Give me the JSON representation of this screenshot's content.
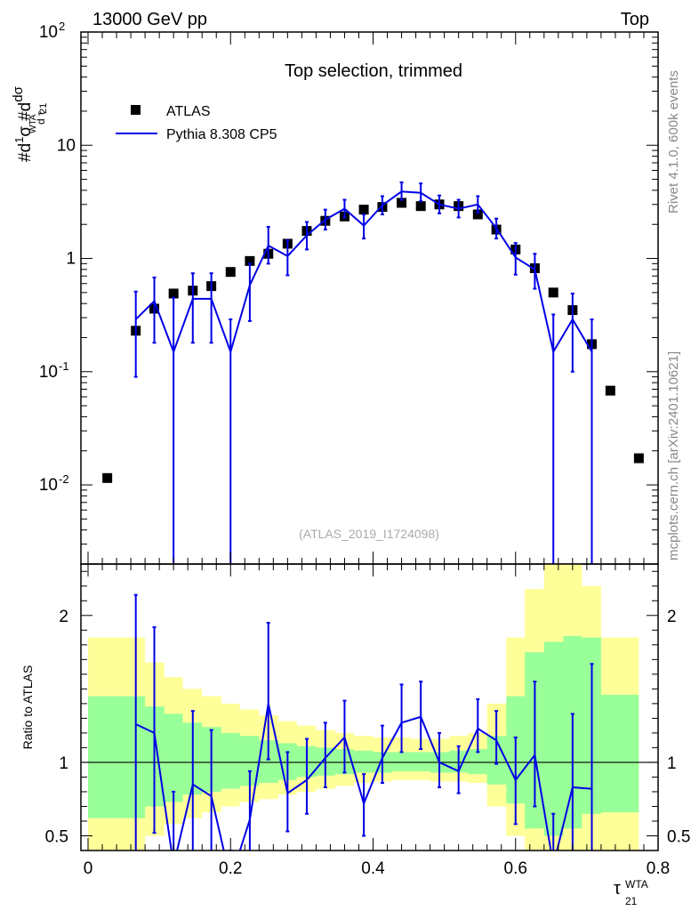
{
  "header": {
    "left": "13000 GeV pp",
    "right": "Top"
  },
  "side_texts": {
    "rivet": "Rivet 4.1.0,  600k events",
    "mcplots": "mcplots.cern.ch [arXiv:2401.10621]"
  },
  "watermark": "(ATLAS_2019_I1724098)",
  "chart_data": [
    {
      "type": "scatter",
      "title": "Top selection, trimmed",
      "xlabel": "τ21 WTA",
      "ylabel": "1/σ dσ/dτ21 WTA",
      "yscale": "log",
      "ylim": [
        0.002,
        100
      ],
      "xlim": [
        -0.01,
        0.8
      ],
      "xticks": [
        0,
        0.2,
        0.4,
        0.6,
        0.8
      ],
      "xtick_labels": [
        "0",
        "0.2",
        "0.4",
        "0.6",
        "0.8"
      ],
      "ytick_labels": [
        "10^-2",
        "10^-1",
        "1",
        "10",
        "10^2"
      ],
      "legend": [
        "ATLAS",
        "Pythia 8.308 CP5"
      ],
      "series": [
        {
          "name": "ATLAS",
          "x": [
            0.027,
            0.067,
            0.093,
            0.12,
            0.147,
            0.173,
            0.2,
            0.227,
            0.253,
            0.28,
            0.307,
            0.333,
            0.36,
            0.387,
            0.413,
            0.44,
            0.467,
            0.493,
            0.52,
            0.547,
            0.573,
            0.6,
            0.627,
            0.653,
            0.68,
            0.707,
            0.733,
            0.773
          ],
          "y": [
            0.0115,
            0.23,
            0.36,
            0.49,
            0.52,
            0.57,
            0.76,
            0.95,
            1.1,
            1.35,
            1.75,
            2.15,
            2.35,
            2.7,
            2.85,
            3.1,
            2.9,
            3.0,
            2.9,
            2.45,
            1.8,
            1.2,
            0.82,
            0.5,
            0.35,
            0.175,
            0.068,
            0.0172
          ]
        },
        {
          "name": "Pythia 8.308 CP5",
          "x": [
            0.067,
            0.093,
            0.12,
            0.147,
            0.173,
            0.2,
            0.227,
            0.253,
            0.28,
            0.307,
            0.333,
            0.36,
            0.387,
            0.413,
            0.44,
            0.467,
            0.493,
            0.52,
            0.547,
            0.573,
            0.6,
            0.627,
            0.653,
            0.68,
            0.707
          ],
          "y": [
            0.29,
            0.42,
            0.15,
            0.44,
            0.44,
            0.15,
            0.58,
            1.3,
            1.05,
            1.6,
            2.2,
            2.75,
            1.95,
            2.95,
            3.9,
            3.8,
            3.0,
            2.75,
            3.0,
            1.85,
            1.02,
            0.8,
            0.15,
            0.29,
            0.15
          ],
          "err": [
            [
              0.2,
              0.22
            ],
            [
              0.24,
              0.26
            ],
            [
              0.15,
              0.3
            ],
            [
              0.26,
              0.3
            ],
            [
              0.26,
              0.3
            ],
            [
              0.15,
              0.14
            ],
            [
              0.3,
              0.32
            ],
            [
              0.4,
              0.6
            ],
            [
              0.34,
              0.4
            ],
            [
              0.4,
              0.5
            ],
            [
              0.4,
              0.5
            ],
            [
              0.45,
              0.55
            ],
            [
              0.45,
              0.5
            ],
            [
              0.5,
              0.6
            ],
            [
              0.6,
              0.8
            ],
            [
              0.6,
              0.8
            ],
            [
              0.5,
              0.6
            ],
            [
              0.45,
              0.55
            ],
            [
              0.45,
              0.55
            ],
            [
              0.35,
              0.4
            ],
            [
              0.3,
              0.35
            ],
            [
              0.26,
              0.3
            ],
            [
              0.15,
              0.17
            ],
            [
              0.19,
              0.2
            ],
            [
              0.15,
              0.14
            ]
          ]
        }
      ]
    },
    {
      "type": "line",
      "ylabel": "Ratio to ATLAS",
      "ylim": [
        0.4,
        2.35
      ],
      "ytick_labels": [
        "0.5",
        "1",
        "2"
      ],
      "reference": 1.0,
      "bands": {
        "x_edges": [
          0.0,
          0.053,
          0.08,
          0.107,
          0.133,
          0.16,
          0.187,
          0.213,
          0.24,
          0.267,
          0.293,
          0.32,
          0.347,
          0.373,
          0.4,
          0.427,
          0.453,
          0.48,
          0.507,
          0.533,
          0.56,
          0.587,
          0.613,
          0.64,
          0.667,
          0.693,
          0.72,
          0.773
        ],
        "green_lo": [
          0.62,
          0.62,
          0.7,
          0.73,
          0.78,
          0.8,
          0.82,
          0.84,
          0.86,
          0.88,
          0.9,
          0.91,
          0.92,
          0.93,
          0.93,
          0.94,
          0.94,
          0.93,
          0.93,
          0.92,
          0.85,
          0.72,
          0.55,
          0.5,
          0.55,
          0.65,
          0.66
        ],
        "green_hi": [
          1.45,
          1.45,
          1.38,
          1.33,
          1.27,
          1.24,
          1.2,
          1.18,
          1.15,
          1.13,
          1.11,
          1.1,
          1.09,
          1.08,
          1.07,
          1.07,
          1.07,
          1.07,
          1.08,
          1.09,
          1.18,
          1.45,
          1.75,
          1.82,
          1.86,
          1.85,
          1.46
        ],
        "yellow_lo": [
          0.35,
          0.35,
          0.5,
          0.58,
          0.62,
          0.66,
          0.7,
          0.73,
          0.75,
          0.78,
          0.8,
          0.82,
          0.84,
          0.86,
          0.87,
          0.88,
          0.88,
          0.87,
          0.87,
          0.86,
          0.7,
          0.5,
          0.35,
          0.3,
          0.35,
          0.4,
          0.4
        ],
        "yellow_hi": [
          1.85,
          1.85,
          1.68,
          1.58,
          1.5,
          1.45,
          1.4,
          1.36,
          1.32,
          1.28,
          1.25,
          1.22,
          1.2,
          1.18,
          1.17,
          1.17,
          1.16,
          1.16,
          1.18,
          1.2,
          1.4,
          1.85,
          2.18,
          2.35,
          2.35,
          2.2,
          1.85
        ]
      },
      "series": [
        {
          "name": "Pythia 8.308 CP5",
          "x": [
            0.067,
            0.093,
            0.12,
            0.147,
            0.173,
            0.2,
            0.227,
            0.253,
            0.28,
            0.307,
            0.333,
            0.36,
            0.387,
            0.413,
            0.44,
            0.467,
            0.493,
            0.52,
            0.547,
            0.573,
            0.6,
            0.627,
            0.653,
            0.68,
            0.707
          ],
          "y": [
            1.26,
            1.2,
            0.3,
            0.85,
            0.77,
            0.2,
            0.61,
            1.4,
            0.79,
            0.88,
            1.03,
            1.17,
            0.72,
            1.03,
            1.27,
            1.31,
            1.0,
            0.94,
            1.23,
            1.15,
            0.88,
            1.05,
            0.3,
            0.83,
            0.82
          ],
          "err": [
            [
              1.0,
              0.88
            ],
            [
              0.68,
              0.72
            ],
            [
              0.3,
              0.5
            ],
            [
              0.55,
              0.5
            ],
            [
              0.45,
              0.45
            ],
            [
              0.2,
              0.2
            ],
            [
              0.3,
              0.33
            ],
            [
              0.38,
              0.55
            ],
            [
              0.26,
              0.28
            ],
            [
              0.23,
              0.28
            ],
            [
              0.2,
              0.24
            ],
            [
              0.24,
              0.25
            ],
            [
              0.22,
              0.2
            ],
            [
              0.17,
              0.22
            ],
            [
              0.2,
              0.26
            ],
            [
              0.22,
              0.24
            ],
            [
              0.17,
              0.2
            ],
            [
              0.15,
              0.17
            ],
            [
              0.16,
              0.2
            ],
            [
              0.16,
              0.2
            ],
            [
              0.3,
              0.29
            ],
            [
              0.35,
              0.5
            ],
            [
              0.3,
              0.35
            ],
            [
              0.45,
              0.5
            ],
            [
              0.45,
              0.85
            ]
          ]
        }
      ]
    }
  ]
}
